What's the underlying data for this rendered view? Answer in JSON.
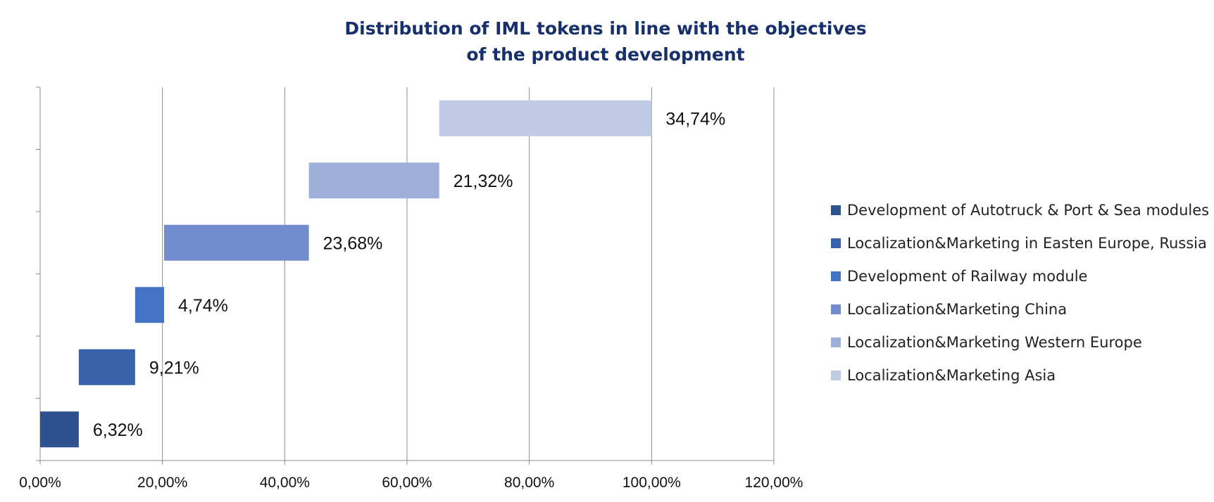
{
  "chart_data": {
    "type": "bar",
    "orientation": "horizontal",
    "subtype": "waterfall",
    "title_lines": [
      "Distribution of IML tokens in line with the objectives",
      "of the product development"
    ],
    "xlabel": "",
    "ylabel": "",
    "xlim": [
      0,
      120
    ],
    "x_ticks": [
      "0,00%",
      "20,00%",
      "40,00%",
      "60,00%",
      "80,00%",
      "100,00%",
      "120,00%"
    ],
    "x_tick_values": [
      0,
      20,
      40,
      60,
      80,
      100,
      120
    ],
    "grid": true,
    "legend_position": "right",
    "series": [
      {
        "name": "Development of Autotruck & Port & Sea modules",
        "start": 0,
        "value": 6.32,
        "label": "6,32%",
        "color": "#2e5290"
      },
      {
        "name": "Localization&Marketing in Easten Europe, Russia",
        "start": 6.32,
        "value": 9.21,
        "label": "9,21%",
        "color": "#3761ab"
      },
      {
        "name": "Development of Railway module",
        "start": 15.53,
        "value": 4.74,
        "label": "4,74%",
        "color": "#4472c4"
      },
      {
        "name": "Localization&Marketing China",
        "start": 20.27,
        "value": 23.68,
        "label": "23,68%",
        "color": "#728dcd"
      },
      {
        "name": "Localization&Marketing Western Europe",
        "start": 43.95,
        "value": 21.32,
        "label": "21,32%",
        "color": "#9eb0da"
      },
      {
        "name": "Localization&Marketing Asia",
        "start": 65.27,
        "value": 34.74,
        "label": "34,74%",
        "color": "#bfcae5"
      }
    ]
  }
}
